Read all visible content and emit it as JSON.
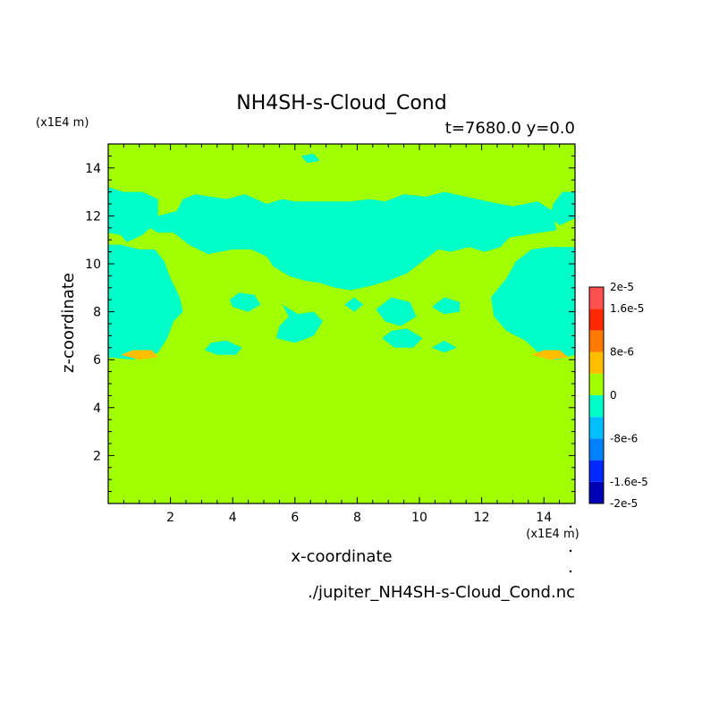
{
  "chart_data": {
    "type": "heatmap",
    "title": "NH4SH-s-Cloud_Cond",
    "subtitle": "t=7680.0 y=0.0",
    "xlabel": "x-coordinate",
    "ylabel": "z-coordinate",
    "x_unit": "(x1E4 m)",
    "y_unit": "(x1E4 m)",
    "source": "./jupiter_NH4SH-s-Cloud_Cond.nc",
    "xlim": [
      0,
      15
    ],
    "ylim": [
      0,
      15
    ],
    "x_ticks": [
      2,
      4,
      6,
      8,
      10,
      12,
      14
    ],
    "y_ticks": [
      2,
      4,
      6,
      8,
      10,
      12,
      14
    ],
    "background_level": 0,
    "colorbar": {
      "labels": [
        "2e-5",
        "1.6e-5",
        "8e-6",
        "0",
        "-8e-6",
        "-1.6e-5",
        "-2e-5"
      ],
      "bins": [
        {
          "from": -2e-05,
          "to": -1.6e-05,
          "color": "#0000b4"
        },
        {
          "from": -1.6e-05,
          "to": -1.2e-05,
          "color": "#0028ff"
        },
        {
          "from": -1.2e-05,
          "to": -8e-06,
          "color": "#0082ff"
        },
        {
          "from": -8e-06,
          "to": -4e-06,
          "color": "#00beff"
        },
        {
          "from": -4e-06,
          "to": 0,
          "color": "#00ffc8"
        },
        {
          "from": 0,
          "to": 4e-06,
          "color": "#a0ff00"
        },
        {
          "from": 4e-06,
          "to": 8e-06,
          "color": "#ffbe00"
        },
        {
          "from": 8e-06,
          "to": 1.2e-05,
          "color": "#ff7800"
        },
        {
          "from": 1.2e-05,
          "to": 1.6e-05,
          "color": "#ff2800"
        },
        {
          "from": 1.6e-05,
          "to": 2e-05,
          "color": "#ff5050"
        }
      ]
    },
    "regions": [
      {
        "level": -2e-06,
        "points": [
          [
            0,
            6.1
          ],
          [
            0.8,
            6.0
          ],
          [
            1.6,
            6.3
          ],
          [
            1.9,
            6.9
          ],
          [
            2.1,
            7.6
          ],
          [
            2.4,
            8.0
          ],
          [
            2.3,
            8.6
          ],
          [
            2.0,
            9.4
          ],
          [
            1.8,
            10.1
          ],
          [
            1.5,
            10.6
          ],
          [
            1.0,
            10.6
          ],
          [
            0.4,
            10.8
          ],
          [
            0,
            10.8
          ]
        ]
      },
      {
        "level": -2e-06,
        "points": [
          [
            0,
            11.3
          ],
          [
            0.4,
            11.2
          ],
          [
            0.6,
            10.9
          ],
          [
            1.1,
            11.2
          ],
          [
            1.6,
            11.8
          ],
          [
            1.6,
            12.7
          ],
          [
            1.1,
            13.0
          ],
          [
            0.5,
            13.0
          ],
          [
            0,
            13.2
          ]
        ]
      },
      {
        "level": -2e-06,
        "points": [
          [
            0.8,
            12.3
          ],
          [
            1.6,
            12.0
          ],
          [
            2.2,
            12.2
          ],
          [
            2.4,
            12.7
          ],
          [
            2.8,
            12.9
          ],
          [
            3.8,
            12.7
          ],
          [
            4.4,
            12.9
          ],
          [
            5.1,
            12.5
          ],
          [
            5.6,
            12.7
          ],
          [
            6.0,
            12.6
          ],
          [
            6.6,
            12.6
          ],
          [
            7.2,
            12.6
          ],
          [
            7.8,
            12.6
          ],
          [
            8.4,
            12.7
          ],
          [
            8.9,
            12.6
          ],
          [
            9.5,
            12.9
          ],
          [
            10.2,
            12.8
          ],
          [
            10.8,
            13.0
          ],
          [
            11.5,
            12.8
          ],
          [
            12.2,
            12.6
          ],
          [
            13.0,
            12.4
          ],
          [
            13.8,
            12.6
          ],
          [
            14.3,
            12.2
          ],
          [
            14.4,
            11.4
          ],
          [
            13.4,
            11.2
          ],
          [
            12.9,
            11.1
          ],
          [
            12.6,
            10.7
          ],
          [
            12.1,
            10.5
          ],
          [
            11.6,
            10.7
          ],
          [
            11.0,
            10.5
          ],
          [
            10.6,
            10.6
          ],
          [
            10.2,
            10.2
          ],
          [
            9.6,
            9.6
          ],
          [
            9.0,
            9.3
          ],
          [
            8.5,
            9.1
          ],
          [
            7.8,
            8.9
          ],
          [
            7.3,
            9.0
          ],
          [
            6.8,
            9.2
          ],
          [
            6.3,
            9.3
          ],
          [
            5.8,
            9.5
          ],
          [
            5.3,
            9.9
          ],
          [
            5.1,
            10.3
          ],
          [
            4.6,
            10.6
          ],
          [
            4.0,
            10.6
          ],
          [
            3.2,
            10.4
          ],
          [
            2.6,
            10.8
          ],
          [
            2.1,
            11.3
          ],
          [
            1.6,
            11.3
          ],
          [
            1.2,
            11.6
          ]
        ]
      },
      {
        "level": -2e-06,
        "points": [
          [
            15,
            6.2
          ],
          [
            14.4,
            6.0
          ],
          [
            13.9,
            6.2
          ],
          [
            13.4,
            6.8
          ],
          [
            12.8,
            7.2
          ],
          [
            12.4,
            7.8
          ],
          [
            12.3,
            8.6
          ],
          [
            12.8,
            9.4
          ],
          [
            13.1,
            10.1
          ],
          [
            13.6,
            10.6
          ],
          [
            14.2,
            10.7
          ],
          [
            15,
            10.7
          ]
        ]
      },
      {
        "level": -2e-06,
        "points": [
          [
            14.5,
            11.6
          ],
          [
            15,
            11.9
          ],
          [
            15,
            13.0
          ],
          [
            14.6,
            13.0
          ],
          [
            14.3,
            12.5
          ],
          [
            14.2,
            12.0
          ]
        ]
      },
      {
        "level": -2e-06,
        "points": [
          [
            4.0,
            8.2
          ],
          [
            4.5,
            8.0
          ],
          [
            4.9,
            8.3
          ],
          [
            4.7,
            8.7
          ],
          [
            4.2,
            8.8
          ],
          [
            3.9,
            8.5
          ]
        ]
      },
      {
        "level": -2e-06,
        "points": [
          [
            5.6,
            8.3
          ],
          [
            6.1,
            7.9
          ],
          [
            6.6,
            8.0
          ],
          [
            6.9,
            7.6
          ],
          [
            6.6,
            7.0
          ],
          [
            6.0,
            6.7
          ],
          [
            5.4,
            6.9
          ],
          [
            5.5,
            7.4
          ],
          [
            5.8,
            7.8
          ]
        ]
      },
      {
        "level": -2e-06,
        "points": [
          [
            7.6,
            8.3
          ],
          [
            7.9,
            8.0
          ],
          [
            8.2,
            8.3
          ],
          [
            7.9,
            8.6
          ]
        ]
      },
      {
        "level": -2e-06,
        "points": [
          [
            8.6,
            8.1
          ],
          [
            8.9,
            7.6
          ],
          [
            9.4,
            7.4
          ],
          [
            9.9,
            7.8
          ],
          [
            9.7,
            8.4
          ],
          [
            9.1,
            8.6
          ]
        ]
      },
      {
        "level": -2e-06,
        "points": [
          [
            8.8,
            6.9
          ],
          [
            9.2,
            6.5
          ],
          [
            9.8,
            6.5
          ],
          [
            10.1,
            6.9
          ],
          [
            9.6,
            7.3
          ],
          [
            9.1,
            7.2
          ]
        ]
      },
      {
        "level": -2e-06,
        "points": [
          [
            10.4,
            8.2
          ],
          [
            10.8,
            7.9
          ],
          [
            11.3,
            8.0
          ],
          [
            11.3,
            8.4
          ],
          [
            10.8,
            8.6
          ]
        ]
      },
      {
        "level": -2e-06,
        "points": [
          [
            3.1,
            6.4
          ],
          [
            3.5,
            6.2
          ],
          [
            4.1,
            6.2
          ],
          [
            4.3,
            6.5
          ],
          [
            3.8,
            6.8
          ],
          [
            3.3,
            6.7
          ]
        ]
      },
      {
        "level": -2e-06,
        "points": [
          [
            6.2,
            14.5
          ],
          [
            6.6,
            14.6
          ],
          [
            6.8,
            14.3
          ],
          [
            6.4,
            14.2
          ]
        ]
      },
      {
        "level": -2e-06,
        "points": [
          [
            10.4,
            6.5
          ],
          [
            10.8,
            6.3
          ],
          [
            11.2,
            6.5
          ],
          [
            10.8,
            6.8
          ]
        ]
      },
      {
        "level": 6e-06,
        "points": [
          [
            0.4,
            6.2
          ],
          [
            1.0,
            6.0
          ],
          [
            1.6,
            6.1
          ],
          [
            1.4,
            6.4
          ],
          [
            0.8,
            6.4
          ]
        ]
      },
      {
        "level": 6e-06,
        "points": [
          [
            13.6,
            6.2
          ],
          [
            14.2,
            6.0
          ],
          [
            14.8,
            6.1
          ],
          [
            14.5,
            6.4
          ],
          [
            14.0,
            6.4
          ]
        ]
      }
    ]
  }
}
